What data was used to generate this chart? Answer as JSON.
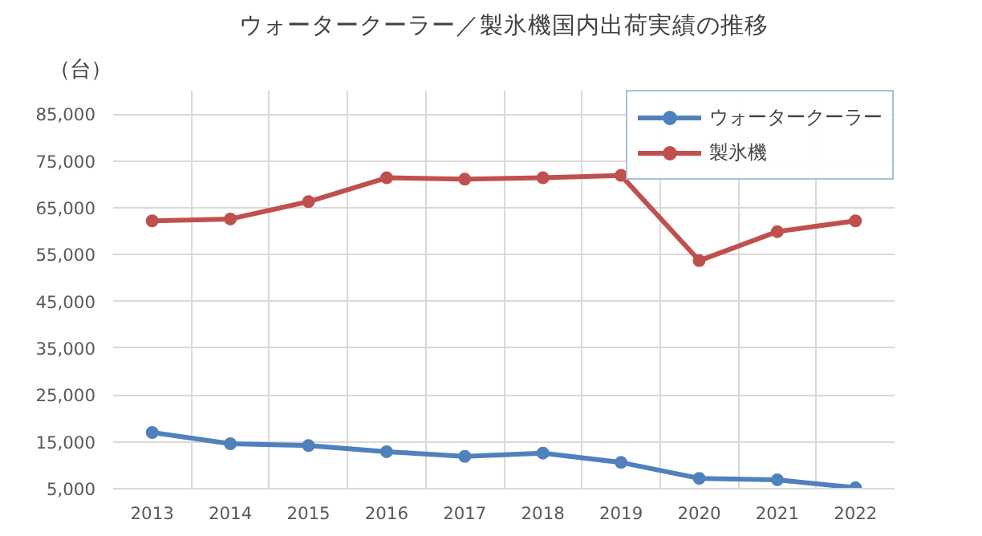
{
  "chart_data": {
    "type": "line",
    "title": "ウォータークーラー／製氷機国内出荷実績の推移",
    "ylabel": "（台）",
    "categories": [
      "2013",
      "2014",
      "2015",
      "2016",
      "2017",
      "2018",
      "2019",
      "2020",
      "2021",
      "2022"
    ],
    "series": [
      {
        "name": "ウォータークーラー",
        "color": "#4f81bd",
        "values": [
          17000,
          14600,
          14200,
          12900,
          11900,
          12600,
          10600,
          7200,
          6900,
          5200
        ]
      },
      {
        "name": "製氷機",
        "color": "#c0504d",
        "values": [
          62200,
          62600,
          66300,
          71400,
          71100,
          71400,
          71900,
          53700,
          59900,
          62200
        ]
      }
    ],
    "ylim": [
      5000,
      90000
    ],
    "yticks": [
      {
        "value": 5000,
        "label": "5,000"
      },
      {
        "value": 15000,
        "label": "15,000"
      },
      {
        "value": 25000,
        "label": "25,000"
      },
      {
        "value": 35000,
        "label": "35,000"
      },
      {
        "value": 45000,
        "label": "45,000"
      },
      {
        "value": 55000,
        "label": "55,000"
      },
      {
        "value": 65000,
        "label": "65,000"
      },
      {
        "value": 75000,
        "label": "75,000"
      },
      {
        "value": 85000,
        "label": "85,000"
      }
    ],
    "grid": true,
    "legend": "top right",
    "marker": "circle",
    "line_style": "solid"
  }
}
